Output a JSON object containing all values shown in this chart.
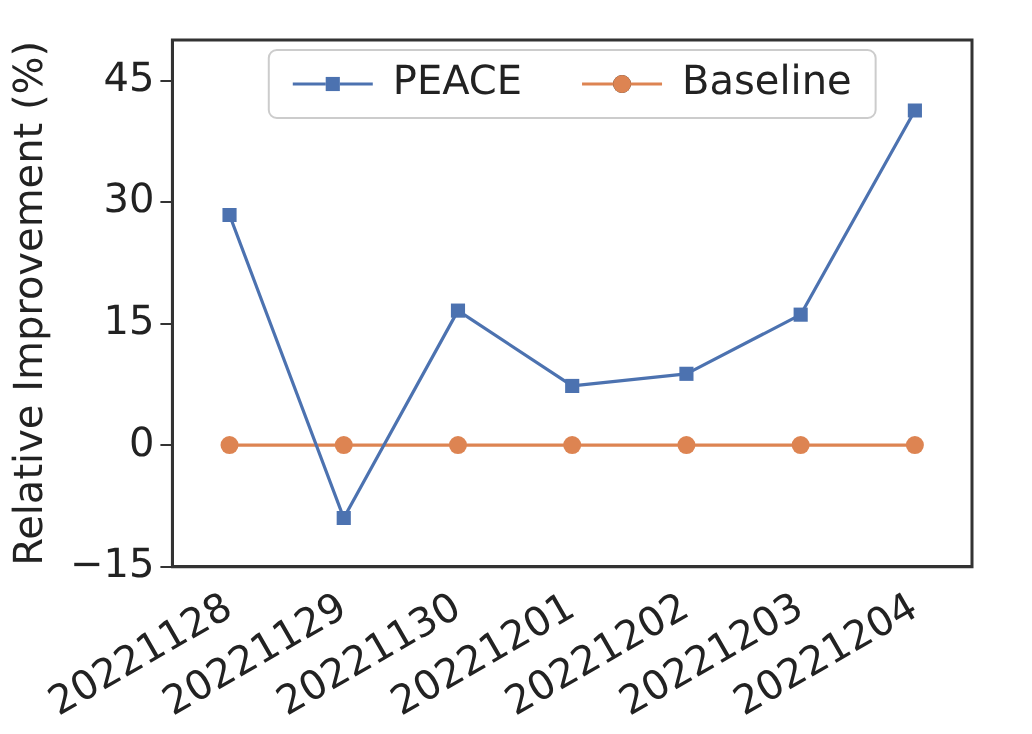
{
  "chart_data": {
    "type": "line",
    "ylabel": "Relative Improvement (%)",
    "categories": [
      "20221128",
      "20221129",
      "20221130",
      "20221201",
      "20221202",
      "20221203",
      "20221204"
    ],
    "series": [
      {
        "name": "PEACE",
        "color": "#4c72b0",
        "marker": "square",
        "values": [
          28.4,
          -9.0,
          16.6,
          7.3,
          8.8,
          16.1,
          41.3
        ]
      },
      {
        "name": "Baseline",
        "color": "#dd8452",
        "marker": "circle",
        "values": [
          0,
          0,
          0,
          0,
          0,
          0,
          0
        ]
      }
    ],
    "ylim": [
      -15,
      50
    ],
    "yticks": [
      -15,
      0,
      15,
      30,
      45
    ],
    "grid": false,
    "legend": "top"
  }
}
